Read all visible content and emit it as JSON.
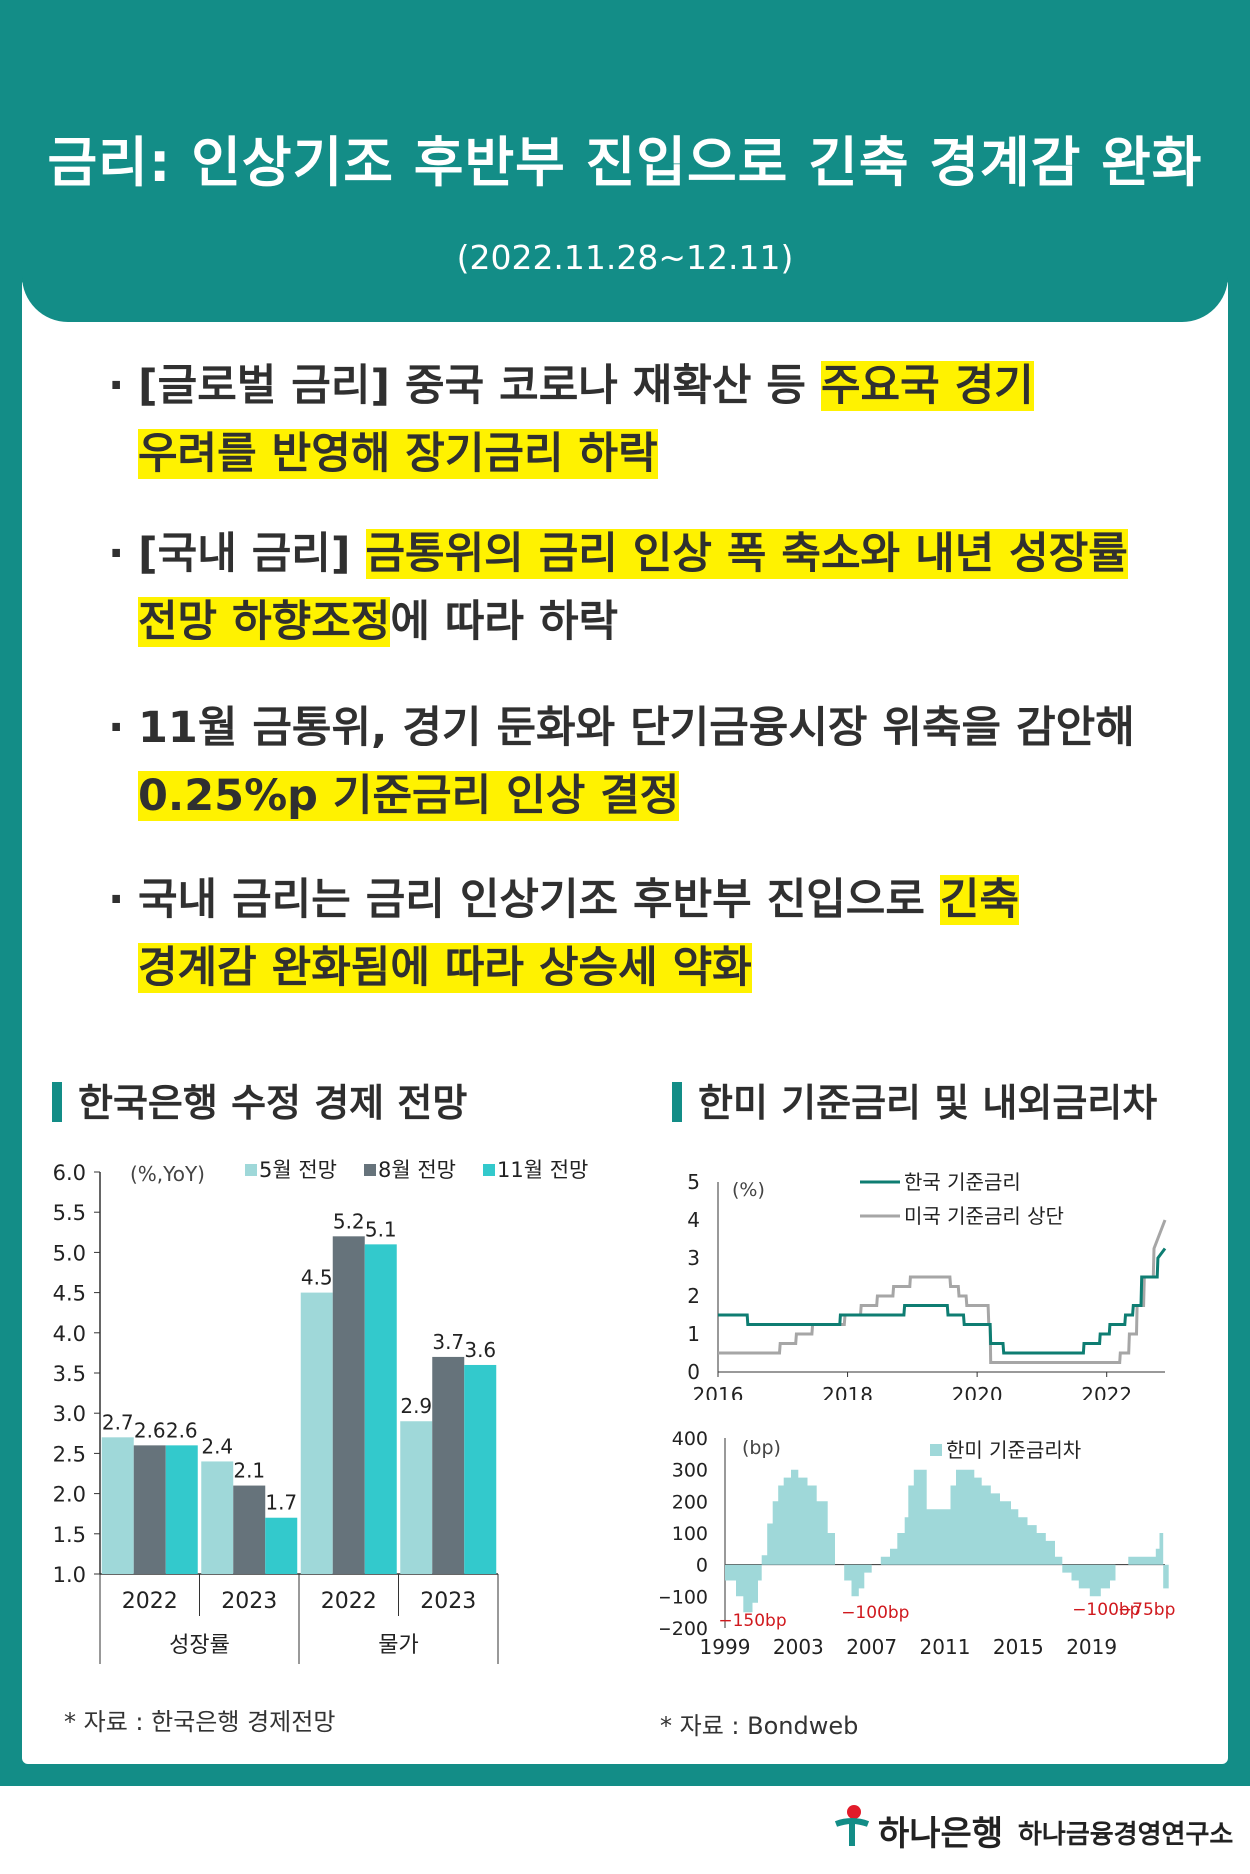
{
  "title": "금리: 인상기조 후반부 진입으로 긴축 경계감 완화",
  "date": "(2022.11.28~12.11)",
  "bullets": [
    {
      "a": "[글로벌 금리] 중국 코로나 재확산 등 ",
      "hl1": "주요국 경기",
      "hl2": "우려를 반영해 장기금리 하락",
      "b": ""
    },
    {
      "a": "[국내 금리] ",
      "hl1": "금통위의 금리 인상 폭 축소와 내년 성장률",
      "hl2": "전망 하향조정",
      "b": "에 따라 하락"
    },
    {
      "a": "11월 금통위, 경기 둔화와 단기금융시장 위축을 감안해",
      "hl1": "",
      "hl2": "0.25%p 기준금리 인상 결정",
      "b": ""
    },
    {
      "a": "국내 금리는 금리 인상기조 후반부 진입으로 ",
      "hl1": "긴축",
      "hl2": "경계감 완화됨에 따라 상승세 약화",
      "b": ""
    }
  ],
  "left_chart_title": "한국은행 수정 경제 전망",
  "right_chart_title": "한미 기준금리 및 내외금리차",
  "left_source": "* 자료 : 한국은행 경제전망",
  "right_source": "* 자료 : Bondweb",
  "footer": {
    "bank": "하나은행",
    "institute": "하나금융경영연구소"
  },
  "colors": {
    "teal": "#138d87",
    "highlight": "#fff200",
    "korea_line": "#0e7d72",
    "us_line": "#a6a6a6",
    "spread_fill": "#9fd8d9"
  },
  "chart_data": [
    {
      "type": "bar",
      "unit_label": "(%,YoY)",
      "ylim": [
        1.0,
        6.0
      ],
      "yticks": [
        "1.0",
        "1.5",
        "2.0",
        "2.5",
        "3.0",
        "3.5",
        "4.0",
        "4.5",
        "5.0",
        "5.5",
        "6.0"
      ],
      "categories": [
        "2022",
        "2023",
        "2022",
        "2023"
      ],
      "groups": [
        "성장률",
        "물가"
      ],
      "series": [
        {
          "name": "5월 전망",
          "color": "#9fd8d9",
          "values": [
            2.7,
            2.4,
            4.5,
            2.9
          ]
        },
        {
          "name": "8월 전망",
          "color": "#66737b",
          "values": [
            2.6,
            2.1,
            5.2,
            3.7
          ]
        },
        {
          "name": "11월 전망",
          "color": "#33c9cc",
          "values": [
            2.6,
            1.7,
            5.1,
            3.6
          ]
        }
      ],
      "data_labels": [
        [
          "2.7",
          "2.4",
          "4.5",
          "2.9"
        ],
        [
          "2.6",
          "2.1",
          "5.2",
          "3.7"
        ],
        [
          "2.6",
          "1.7",
          "5.1",
          "3.6"
        ]
      ]
    },
    {
      "type": "line",
      "unit_label": "(%)",
      "ylim": [
        0,
        5
      ],
      "yticks": [
        "0",
        "1",
        "2",
        "3",
        "4",
        "5"
      ],
      "xticks": [
        "2016",
        "2018",
        "2020",
        "2022"
      ],
      "x_range": [
        2016,
        2022.9
      ],
      "series": [
        {
          "name": "한국 기준금리",
          "color": "#0e7d72",
          "x": [
            2016.0,
            2016.45,
            2016.46,
            2017.88,
            2017.89,
            2018.87,
            2018.88,
            2019.54,
            2019.55,
            2019.79,
            2019.8,
            2020.2,
            2020.21,
            2020.4,
            2020.41,
            2021.64,
            2021.65,
            2021.89,
            2021.9,
            2022.04,
            2022.05,
            2022.28,
            2022.29,
            2022.4,
            2022.41,
            2022.53,
            2022.54,
            2022.78,
            2022.79,
            2022.9
          ],
          "y": [
            1.5,
            1.5,
            1.25,
            1.25,
            1.5,
            1.5,
            1.75,
            1.75,
            1.5,
            1.5,
            1.25,
            1.25,
            0.75,
            0.75,
            0.5,
            0.5,
            0.75,
            0.75,
            1.0,
            1.0,
            1.25,
            1.25,
            1.5,
            1.5,
            1.75,
            1.75,
            2.5,
            2.5,
            3.0,
            3.25
          ]
        },
        {
          "name": "미국 기준금리 상단",
          "color": "#a6a6a6",
          "x": [
            2016.0,
            2016.95,
            2016.96,
            2017.2,
            2017.21,
            2017.45,
            2017.46,
            2017.95,
            2017.96,
            2018.2,
            2018.21,
            2018.45,
            2018.46,
            2018.7,
            2018.71,
            2018.96,
            2018.97,
            2019.58,
            2019.59,
            2019.71,
            2019.72,
            2019.83,
            2019.84,
            2020.17,
            2020.18,
            2020.2,
            2020.21,
            2022.2,
            2022.21,
            2022.34,
            2022.35,
            2022.46,
            2022.47,
            2022.57,
            2022.58,
            2022.72,
            2022.73,
            2022.9
          ],
          "y": [
            0.5,
            0.5,
            0.75,
            0.75,
            1.0,
            1.0,
            1.25,
            1.25,
            1.5,
            1.5,
            1.75,
            1.75,
            2.0,
            2.0,
            2.25,
            2.25,
            2.5,
            2.5,
            2.25,
            2.25,
            2.0,
            2.0,
            1.75,
            1.75,
            1.25,
            1.25,
            0.25,
            0.25,
            0.5,
            0.5,
            1.0,
            1.0,
            1.75,
            1.75,
            2.5,
            2.5,
            3.25,
            4.0
          ]
        }
      ]
    },
    {
      "type": "area",
      "unit_label": "(bp)",
      "ylim": [
        -200,
        400
      ],
      "yticks": [
        "-200",
        "-100",
        "0",
        "100",
        "200",
        "300",
        "400"
      ],
      "xticks": [
        "1999",
        "2003",
        "2007",
        "2011",
        "2015",
        "2019"
      ],
      "x_range": [
        1999,
        2023
      ],
      "series": [
        {
          "name": "한미 기준금리차",
          "color": "#9fd8d9",
          "x": [
            1999.0,
            1999.6,
            2000.0,
            2000.5,
            2000.8,
            2001.0,
            2001.3,
            2001.6,
            2001.9,
            2002.2,
            2002.6,
            2003.0,
            2003.5,
            2004.0,
            2004.6,
            2005.0,
            2005.5,
            2005.9,
            2006.3,
            2006.6,
            2007.0,
            2007.5,
            2008.0,
            2008.4,
            2008.8,
            2009.0,
            2009.3,
            2010.0,
            2010.5,
            2011.0,
            2011.3,
            2011.6,
            2012.0,
            2012.6,
            2013.0,
            2013.5,
            2014.0,
            2014.6,
            2015.0,
            2015.5,
            2016.0,
            2016.5,
            2017.0,
            2017.4,
            2017.9,
            2018.3,
            2018.9,
            2019.5,
            2020.0,
            2020.3,
            2021.0,
            2021.7,
            2022.0,
            2022.3,
            2022.5,
            2022.7,
            2022.9
          ],
          "y": [
            -50,
            -100,
            -150,
            -120,
            -50,
            30,
            130,
            200,
            250,
            275,
            300,
            275,
            250,
            200,
            100,
            0,
            -50,
            -100,
            -75,
            -25,
            0,
            25,
            50,
            100,
            150,
            250,
            300,
            175,
            175,
            175,
            250,
            300,
            300,
            275,
            250,
            225,
            200,
            175,
            150,
            125,
            100,
            75,
            25,
            -25,
            -50,
            -75,
            -100,
            -75,
            -50,
            0,
            25,
            25,
            25,
            25,
            50,
            100,
            -75
          ]
        }
      ],
      "annotations": [
        "-150bp",
        "-100bp",
        "-100bp",
        "-75bp"
      ]
    }
  ]
}
